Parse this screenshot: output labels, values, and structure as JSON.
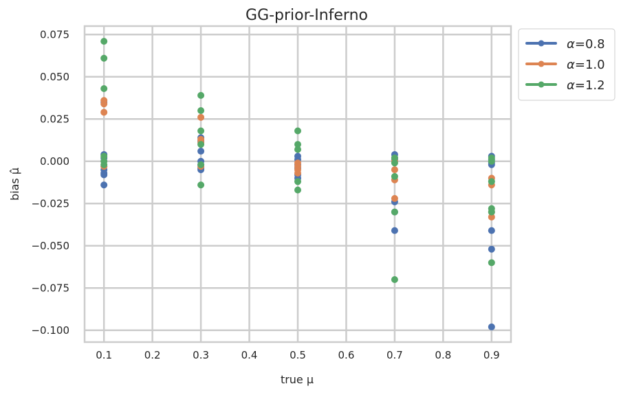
{
  "chart_data": {
    "type": "scatter",
    "title": "GG-prior-Inferno",
    "xlabel": "true μ",
    "ylabel": "bias μ̂",
    "xlim": [
      0.06,
      0.94
    ],
    "ylim": [
      -0.107,
      0.08
    ],
    "xticks": [
      0.1,
      0.2,
      0.3,
      0.4,
      0.5,
      0.6,
      0.7,
      0.8,
      0.9
    ],
    "xtick_labels": [
      "0.1",
      "0.2",
      "0.3",
      "0.4",
      "0.5",
      "0.6",
      "0.7",
      "0.8",
      "0.9"
    ],
    "yticks": [
      0.075,
      0.05,
      0.025,
      0.0,
      -0.025,
      -0.05,
      -0.075,
      -0.1
    ],
    "ytick_labels": [
      "0.075",
      "0.050",
      "0.025",
      "0.000",
      "−0.025",
      "−0.050",
      "−0.075",
      "−0.100"
    ],
    "grid": true,
    "legend_position": "outside-top-right",
    "series": [
      {
        "name": "α=0.8",
        "label_prefix": "α",
        "label_value": "=0.8",
        "color": "#4c72b0",
        "points": [
          [
            0.1,
            0.004
          ],
          [
            0.1,
            0.002
          ],
          [
            0.1,
            -0.003
          ],
          [
            0.1,
            -0.005
          ],
          [
            0.1,
            -0.007
          ],
          [
            0.1,
            -0.008
          ],
          [
            0.1,
            -0.014
          ],
          [
            0.1,
            0.035
          ],
          [
            0.3,
            0.014
          ],
          [
            0.3,
            0.012
          ],
          [
            0.3,
            0.006
          ],
          [
            0.3,
            0.0
          ],
          [
            0.3,
            -0.002
          ],
          [
            0.3,
            -0.004
          ],
          [
            0.3,
            -0.005
          ],
          [
            0.5,
            0.003
          ],
          [
            0.5,
            0.001
          ],
          [
            0.5,
            -0.002
          ],
          [
            0.5,
            -0.004
          ],
          [
            0.5,
            -0.008
          ],
          [
            0.5,
            -0.01
          ],
          [
            0.7,
            0.004
          ],
          [
            0.7,
            0.002
          ],
          [
            0.7,
            0.001
          ],
          [
            0.7,
            -0.024
          ],
          [
            0.7,
            -0.03
          ],
          [
            0.7,
            -0.041
          ],
          [
            0.9,
            0.003
          ],
          [
            0.9,
            0.001
          ],
          [
            0.9,
            -0.001
          ],
          [
            0.9,
            -0.002
          ],
          [
            0.9,
            -0.041
          ],
          [
            0.9,
            -0.052
          ],
          [
            0.9,
            -0.098
          ]
        ]
      },
      {
        "name": "α=1.0",
        "label_prefix": "α",
        "label_value": "=1.0",
        "color": "#dd8452",
        "points": [
          [
            0.1,
            0.036
          ],
          [
            0.1,
            0.034
          ],
          [
            0.1,
            0.029
          ],
          [
            0.1,
            -0.003
          ],
          [
            0.3,
            0.026
          ],
          [
            0.3,
            0.013
          ],
          [
            0.3,
            0.011
          ],
          [
            0.3,
            -0.003
          ],
          [
            0.5,
            -0.001
          ],
          [
            0.5,
            -0.003
          ],
          [
            0.5,
            -0.005
          ],
          [
            0.5,
            -0.007
          ],
          [
            0.7,
            0.0
          ],
          [
            0.7,
            -0.005
          ],
          [
            0.7,
            -0.011
          ],
          [
            0.7,
            -0.022
          ],
          [
            0.9,
            -0.01
          ],
          [
            0.9,
            -0.014
          ],
          [
            0.9,
            -0.03
          ],
          [
            0.9,
            -0.033
          ]
        ]
      },
      {
        "name": "α=1.2",
        "label_prefix": "α",
        "label_value": "=1.2",
        "color": "#55a868",
        "points": [
          [
            0.1,
            0.071
          ],
          [
            0.1,
            0.061
          ],
          [
            0.1,
            0.043
          ],
          [
            0.1,
            0.003
          ],
          [
            0.1,
            0.0
          ],
          [
            0.1,
            -0.002
          ],
          [
            0.3,
            0.039
          ],
          [
            0.3,
            0.03
          ],
          [
            0.3,
            0.018
          ],
          [
            0.3,
            0.01
          ],
          [
            0.3,
            -0.002
          ],
          [
            0.3,
            -0.014
          ],
          [
            0.5,
            0.018
          ],
          [
            0.5,
            0.01
          ],
          [
            0.5,
            0.007
          ],
          [
            0.5,
            -0.012
          ],
          [
            0.5,
            -0.017
          ],
          [
            0.7,
            0.002
          ],
          [
            0.7,
            -0.001
          ],
          [
            0.7,
            -0.009
          ],
          [
            0.7,
            -0.03
          ],
          [
            0.7,
            -0.07
          ],
          [
            0.9,
            0.002
          ],
          [
            0.9,
            0.0
          ],
          [
            0.9,
            -0.012
          ],
          [
            0.9,
            -0.028
          ],
          [
            0.9,
            -0.03
          ],
          [
            0.9,
            -0.06
          ]
        ]
      }
    ]
  }
}
